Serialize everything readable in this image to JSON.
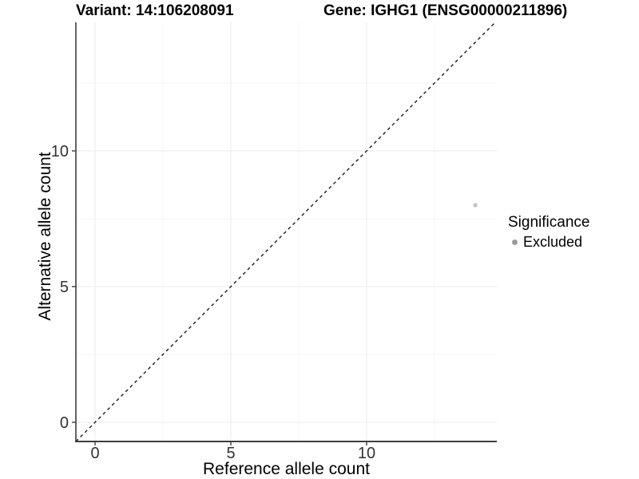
{
  "titles": {
    "variant": "Variant: 14:106208091",
    "gene": "Gene: IGHG1 (ENSG00000211896)"
  },
  "chart_data": {
    "type": "scatter",
    "title_left": "Variant: 14:106208091",
    "title_right": "Gene: IGHG1 (ENSG00000211896)",
    "xlabel": "Reference allele count",
    "ylabel": "Alternative allele count",
    "xlim": [
      0,
      14
    ],
    "ylim": [
      0,
      14
    ],
    "x_ticks": [
      0,
      5,
      10
    ],
    "y_ticks": [
      0,
      5,
      10
    ],
    "x_minor_ticks": [
      2.5,
      7.5,
      12.5
    ],
    "y_minor_ticks": [
      2.5,
      7.5,
      12.5
    ],
    "grid": "major+minor",
    "series": [
      {
        "name": "Excluded",
        "color": "#c4c4c4",
        "points": [
          {
            "x": 14,
            "y": 8
          }
        ]
      }
    ],
    "reference_line": {
      "kind": "identity",
      "slope": 1,
      "intercept": 0,
      "linetype": "dashed",
      "color": "#1a1a1a"
    },
    "legend": {
      "title": "Significance",
      "position": "right",
      "items": [
        {
          "label": "Excluded",
          "marker_color": "#9b9b9b"
        }
      ]
    }
  },
  "colors": {
    "background": "#ffffff",
    "grid_major": "#ebebeb",
    "grid_minor": "#f5f5f5",
    "axis_line": "#3d3d3d",
    "tick_label": "#333333"
  }
}
